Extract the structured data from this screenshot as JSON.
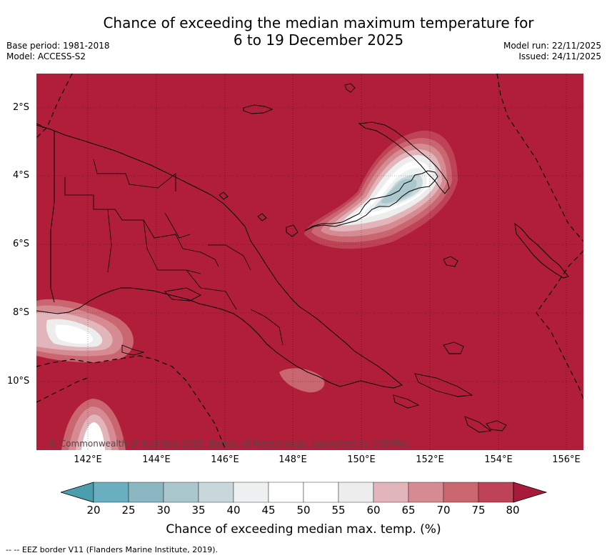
{
  "header": {
    "title_line1": "Chance of exceeding the median maximum temperature for",
    "title_line2": "6 to 19 December 2025",
    "base_period": "Base period: 1981-2018",
    "model": "Model: ACCESS-S2",
    "model_run": "Model run: 22/11/2025",
    "issued": "Issued: 24/11/2025"
  },
  "map": {
    "lat_labels": [
      "2°S",
      "4°S",
      "6°S",
      "8°S",
      "10°S"
    ],
    "lon_labels": [
      "142°E",
      "144°E",
      "146°E",
      "148°E",
      "150°E",
      "152°E",
      "154°E",
      "156°E"
    ],
    "copyright": "© Commonwealth of Australia 2025, Bureau of Meteorology, supported by COSPPac",
    "background_color": "#b01e3a"
  },
  "colorbar": {
    "ticks": [
      "20",
      "25",
      "30",
      "35",
      "40",
      "45",
      "50",
      "55",
      "60",
      "65",
      "70",
      "75",
      "80"
    ],
    "colors": [
      "#6aafbf",
      "#8ab7c2",
      "#a9c7cc",
      "#c8d8da",
      "#edf1f2",
      "#ffffff",
      "#ffffff",
      "#ededee",
      "#e1b5b9",
      "#d68b93",
      "#c96670",
      "#be4356"
    ],
    "low_color": "#4a9eae",
    "high_color": "#a81a3a",
    "title": "Chance of exceeding median max. temp. (%)"
  },
  "legend": {
    "eez_text": "-- -- EEZ border V11 (Flanders Marine Institute, 2019)."
  }
}
